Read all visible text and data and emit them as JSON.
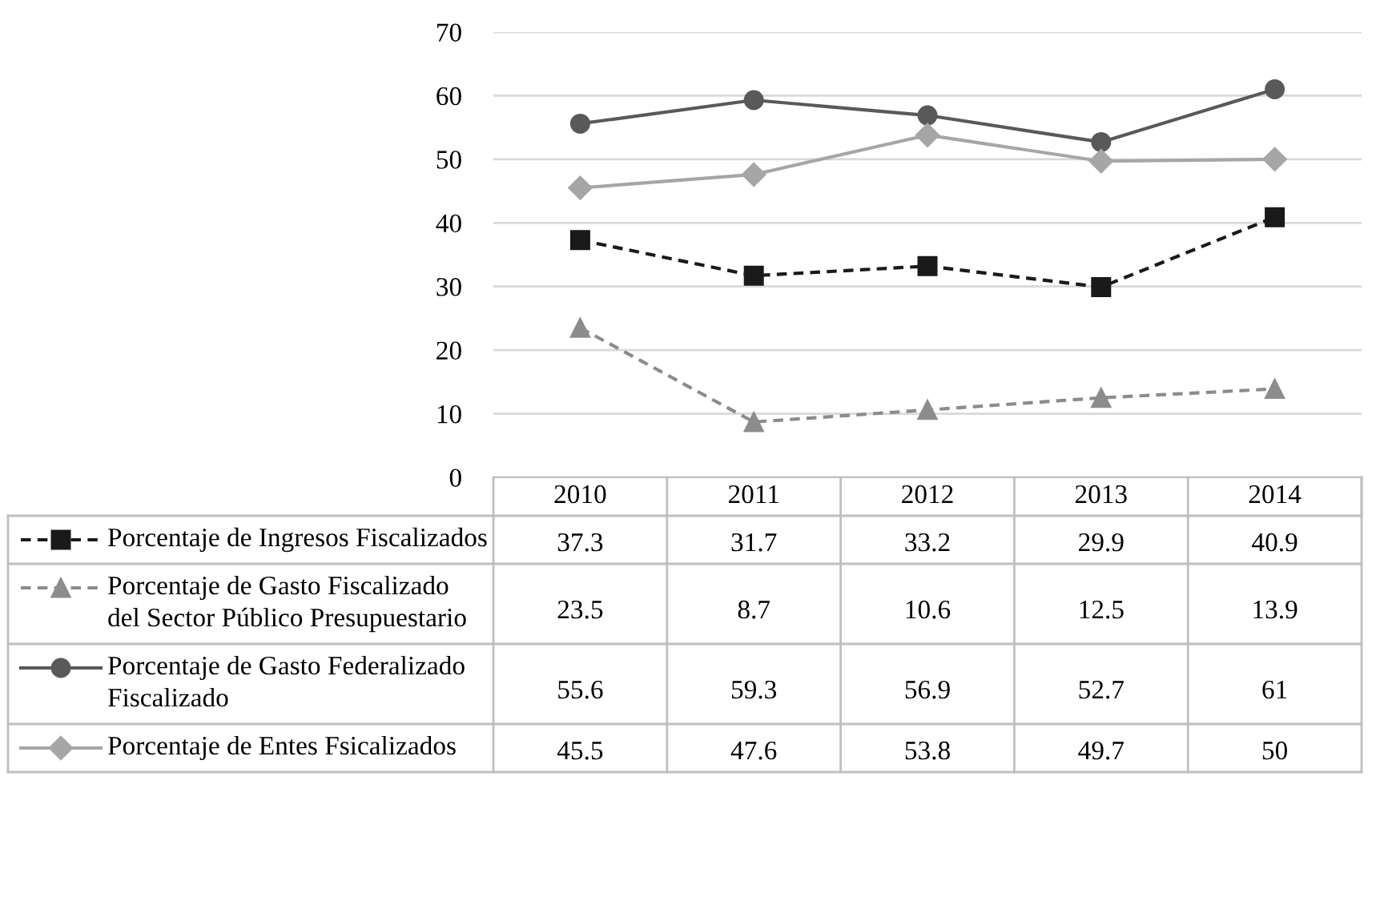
{
  "chart_data": {
    "type": "line",
    "categories": [
      "2010",
      "2011",
      "2012",
      "2013",
      "2014"
    ],
    "ylim": [
      0,
      70
    ],
    "yticks": [
      0,
      10,
      20,
      30,
      40,
      50,
      60,
      70
    ],
    "grid": "y",
    "legend": "bottom",
    "data_labels": true,
    "series": [
      {
        "name": "Porcentaje de Ingresos Fiscalizados",
        "color": "#1a1a1a",
        "marker": "square",
        "line_style": "dashed",
        "values": [
          37.3,
          31.7,
          33.2,
          29.9,
          40.9
        ]
      },
      {
        "name": "Porcentaje de Gasto Fiscalizado del Sector Público Presupuestario",
        "color": "#8c8c8c",
        "marker": "triangle",
        "line_style": "dashed",
        "values": [
          23.5,
          8.7,
          10.6,
          12.5,
          13.9
        ]
      },
      {
        "name": "Porcentaje de Gasto Federalizado Fiscalizado",
        "color": "#595959",
        "marker": "circle",
        "line_style": "solid",
        "values": [
          55.6,
          59.3,
          56.9,
          52.7,
          61
        ]
      },
      {
        "name": "Porcentaje de Entes Fsicalizados",
        "color": "#a6a6a6",
        "marker": "diamond",
        "line_style": "solid",
        "values": [
          45.5,
          47.6,
          53.8,
          49.7,
          50
        ]
      }
    ]
  }
}
